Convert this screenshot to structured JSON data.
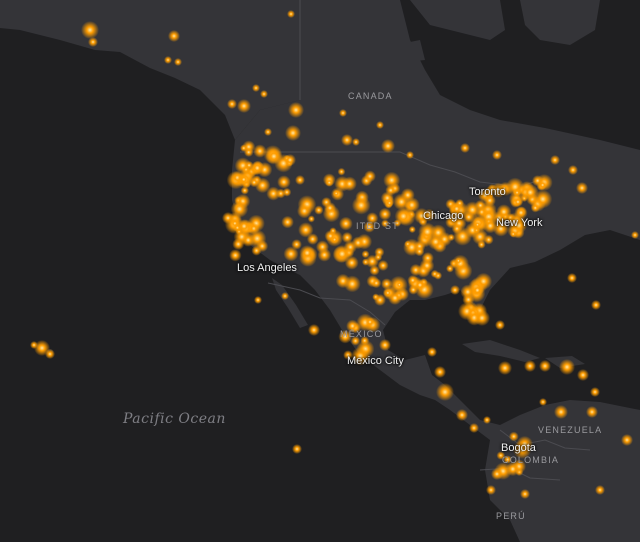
{
  "map": {
    "colors": {
      "water": "#1f1f21",
      "land": "#343438",
      "border": "#4b4b50",
      "point": "#ff9d00",
      "point_core": "#ffe9a8"
    },
    "labels": {
      "canada": "CANADA",
      "mexico": "MÉXICO",
      "united_states": "ITED ST",
      "venezuela": "VENEZUELA",
      "colombia": "COLOMBIA",
      "peru": "PERÚ",
      "toronto": "Toronto",
      "chicago": "Chicago",
      "new_york": "New York",
      "los_angeles": "Los Angeles",
      "mexico_city": "Mexico City",
      "bogota": "Bogota",
      "pacific_ocean": "Pacific Ocean"
    }
  }
}
